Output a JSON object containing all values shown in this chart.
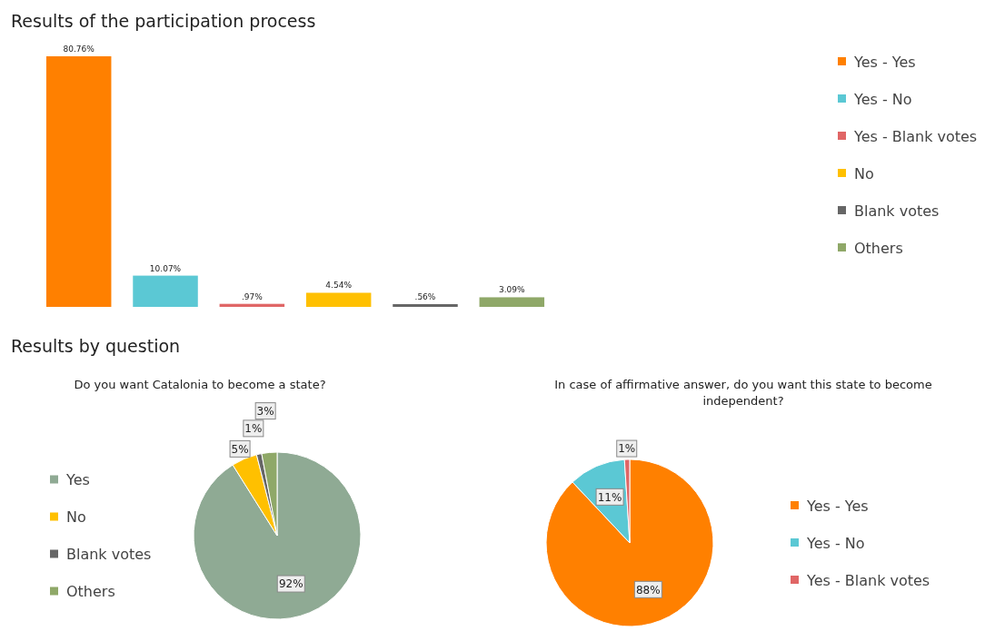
{
  "chart_data": [
    {
      "type": "bar",
      "title": "Results of the participation process",
      "categories": [
        null,
        null,
        null,
        null,
        null,
        null
      ],
      "stacked": true,
      "legend": "right",
      "series": [
        {
          "name": "Yes - Yes",
          "color": "#ff8000",
          "values": [
            80.76,
            null,
            null,
            null,
            null,
            null
          ],
          "value_labels": [
            "80.76%",
            null,
            null,
            null,
            null,
            null
          ]
        },
        {
          "name": "Yes - No",
          "color": "#5bc8d4",
          "values": [
            null,
            10.07,
            null,
            null,
            null,
            null
          ],
          "value_labels": [
            null,
            "10.07%",
            null,
            null,
            null,
            null
          ]
        },
        {
          "name": "Yes - Blank votes",
          "color": "#e06666",
          "values": [
            null,
            null,
            0.97,
            null,
            null,
            null
          ],
          "value_labels": [
            null,
            null,
            ".97%",
            null,
            null,
            null
          ]
        },
        {
          "name": "No",
          "color": "#ffc000",
          "values": [
            null,
            null,
            null,
            4.54,
            null,
            null
          ],
          "value_labels": [
            null,
            null,
            null,
            "4.54%",
            null,
            null
          ]
        },
        {
          "name": "Blank votes",
          "color": "#666666",
          "values": [
            null,
            null,
            null,
            null,
            0.56,
            null
          ],
          "value_labels": [
            null,
            null,
            null,
            null,
            ".56%",
            null
          ]
        },
        {
          "name": "Others",
          "color": "#8fa868",
          "values": [
            null,
            null,
            null,
            null,
            null,
            3.09
          ],
          "value_labels": [
            null,
            null,
            null,
            null,
            null,
            "3.09%"
          ]
        }
      ]
    },
    {
      "type": "other",
      "title": "Results by question"
    },
    {
      "type": "pie",
      "title": "Do you want Catalonia to become a state?",
      "categories": [
        "Yes",
        "No",
        "Blank votes",
        "Others"
      ],
      "values": [
        92,
        5,
        1,
        3
      ],
      "value_labels": [
        "92%",
        "5%",
        "1%",
        "3%"
      ],
      "colors": [
        "#8faa94",
        "#ffc000",
        "#666666",
        "#8fa868"
      ],
      "legend": "left"
    },
    {
      "type": "pie",
      "title": "In case of affirmative answer, do you want this state to become independent?",
      "categories": [
        "Yes - Yes",
        "Yes - No",
        "Yes - Blank votes"
      ],
      "values": [
        88,
        11,
        1
      ],
      "value_labels": [
        "88%",
        "11%",
        "1%"
      ],
      "colors": [
        "#ff8000",
        "#5bc8d4",
        "#e06666"
      ],
      "legend": "right"
    }
  ]
}
